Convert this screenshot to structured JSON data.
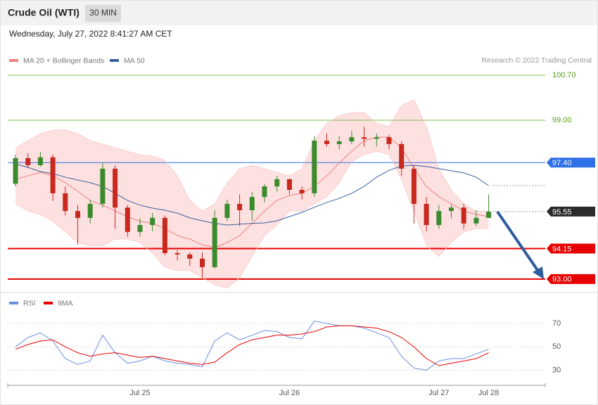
{
  "header": {
    "title": "Crude Oil (WTI)",
    "interval": "30 MIN",
    "timestamp": "Wednesday, July 27, 2022 8:41:27 AM CET"
  },
  "credit": "Research © 2022 Trading Central",
  "chart_data": [
    {
      "type": "candlestick",
      "ylim": [
        92.65,
        101.02
      ],
      "open": [
        96.6,
        97.57,
        97.3,
        97.6,
        96.24,
        95.57,
        95.31,
        95.84,
        97.17,
        95.7,
        94.78,
        95.04,
        95.31,
        93.98,
        93.93,
        93.77,
        93.45,
        95.31,
        95.84,
        95.6,
        96.1,
        96.5,
        96.77,
        96.37,
        96.24,
        98.23,
        98.1,
        98.2,
        98.36,
        98.3,
        98.36,
        98.1,
        97.17,
        95.84,
        95.04,
        95.57,
        95.7,
        95.1,
        95.31
      ],
      "high": [
        97.7,
        97.75,
        97.8,
        97.7,
        96.5,
        95.8,
        96.0,
        97.4,
        97.3,
        95.8,
        95.3,
        95.5,
        95.4,
        94.1,
        94.0,
        94.0,
        95.6,
        96.0,
        96.2,
        96.3,
        96.6,
        96.9,
        96.8,
        96.5,
        98.4,
        98.5,
        98.4,
        98.6,
        98.75,
        98.5,
        98.45,
        98.2,
        97.3,
        96.1,
        95.8,
        95.8,
        95.85,
        95.6,
        96.2
      ],
      "low": [
        96.5,
        97.2,
        97.25,
        95.95,
        95.4,
        94.3,
        95.1,
        95.7,
        94.9,
        94.6,
        94.6,
        94.8,
        93.9,
        93.7,
        93.5,
        93.05,
        93.4,
        95.2,
        95.0,
        95.2,
        95.9,
        96.3,
        96.2,
        96.0,
        96.1,
        98.0,
        97.9,
        98.1,
        98.0,
        98.0,
        97.9,
        96.9,
        95.1,
        94.8,
        94.9,
        95.3,
        94.9,
        95.0,
        95.3
      ],
      "close": [
        97.57,
        97.3,
        97.6,
        96.24,
        95.57,
        95.31,
        95.84,
        97.17,
        95.7,
        94.78,
        95.04,
        95.31,
        93.98,
        93.93,
        93.77,
        93.45,
        95.31,
        95.84,
        95.6,
        96.1,
        96.5,
        96.77,
        96.37,
        96.24,
        98.23,
        98.1,
        98.2,
        98.36,
        98.3,
        98.36,
        98.1,
        97.17,
        95.84,
        95.04,
        95.57,
        95.7,
        95.1,
        95.31,
        95.55
      ],
      "up_color": "#3c8a2e",
      "down_color": "#c8281e",
      "series": [
        {
          "name": "MA 20 + Bollinger Bands",
          "color": "#f08080",
          "band_color": "#fde0e0",
          "values": [
            96.77,
            96.9,
            97.03,
            96.9,
            96.64,
            96.32,
            95.97,
            95.79,
            95.57,
            95.36,
            95.18,
            95.1,
            94.91,
            94.64,
            94.51,
            94.3,
            94.19,
            94.38,
            94.64,
            95.1,
            95.57,
            95.97,
            96.16,
            96.24,
            96.5,
            96.9,
            97.38,
            97.83,
            98.23,
            98.36,
            98.36,
            97.96,
            97.17,
            96.5,
            96.11,
            95.84,
            95.57,
            95.44,
            95.36
          ],
          "upper": [
            97.96,
            98.23,
            98.5,
            98.63,
            98.63,
            98.5,
            98.23,
            98.1,
            97.96,
            97.83,
            97.7,
            97.65,
            97.49,
            96.9,
            95.97,
            95.57,
            95.84,
            96.64,
            97.17,
            97.3,
            97.17,
            97.03,
            96.9,
            97.17,
            98.23,
            98.89,
            99.16,
            99.29,
            99.29,
            98.89,
            98.76,
            99.56,
            99.77,
            98.76,
            97.17,
            96.37,
            95.84,
            95.57,
            95.57
          ],
          "lower": [
            95.84,
            95.57,
            95.44,
            95.18,
            94.78,
            94.38,
            94.25,
            94.25,
            94.51,
            94.51,
            94.38,
            93.98,
            93.45,
            93.32,
            93.32,
            93.05,
            92.79,
            92.65,
            93.05,
            93.85,
            94.64,
            95.04,
            95.57,
            95.57,
            95.84,
            96.11,
            96.64,
            97.43,
            97.7,
            97.83,
            97.7,
            96.77,
            95.57,
            94.25,
            93.85,
            94.38,
            94.78,
            94.91,
            94.91
          ]
        },
        {
          "name": "MA 50",
          "color": "#3a5fa0",
          "values": [
            97.35,
            97.22,
            97.06,
            96.98,
            96.85,
            96.74,
            96.64,
            96.5,
            96.24,
            95.97,
            95.79,
            95.68,
            95.6,
            95.49,
            95.31,
            95.2,
            95.1,
            95.04,
            95.07,
            95.1,
            95.12,
            95.2,
            95.36,
            95.52,
            95.71,
            95.89,
            96.05,
            96.24,
            96.5,
            96.85,
            97.11,
            97.27,
            97.3,
            97.25,
            97.17,
            97.09,
            97.01,
            96.85,
            96.53
          ]
        }
      ],
      "levels": [
        {
          "value": 100.7,
          "label": "100.70",
          "color": "#7cbf4a",
          "box": false
        },
        {
          "value": 99,
          "label": "99.00",
          "color": "#7cbf4a",
          "box": false
        },
        {
          "value": 97.4,
          "label": "97.40",
          "color": "#2f6fe8",
          "box": true
        },
        {
          "value": 95.55,
          "color": "#2b2b2b",
          "box": true
        },
        {
          "value": 94.15,
          "color": "#e60000",
          "box": true
        },
        {
          "value": 93,
          "label": "93.00",
          "color": "#e60000",
          "box": true
        }
      ]
    },
    {
      "type": "line",
      "ylim": [
        22,
        79
      ],
      "yticks": [
        30,
        50,
        70
      ],
      "categories": [
        null,
        null,
        null,
        null,
        null,
        null,
        null,
        null,
        null,
        null,
        "Jul 25",
        null,
        null,
        null,
        null,
        null,
        null,
        null,
        null,
        null,
        null,
        null,
        "Jul 26",
        null,
        null,
        null,
        null,
        null,
        null,
        null,
        null,
        null,
        null,
        null,
        "Jul 27",
        null,
        null,
        null,
        "Jul 28"
      ],
      "series": [
        {
          "name": "RSI",
          "color": "#6a8ee0",
          "values": [
            50,
            58,
            62,
            55,
            40,
            35,
            38,
            60,
            45,
            36,
            38,
            42,
            38,
            36,
            35,
            33,
            55,
            62,
            56,
            60,
            64,
            63,
            58,
            57,
            72,
            70,
            68,
            68,
            66,
            62,
            58,
            42,
            32,
            30,
            38,
            40,
            40,
            44,
            48
          ]
        },
        {
          "name": "9MA",
          "color": "#e60000",
          "values": [
            48,
            52,
            55,
            56,
            50,
            45,
            42,
            44,
            45,
            43,
            41,
            42,
            40,
            38,
            36,
            35,
            37,
            45,
            52,
            56,
            58,
            60,
            60,
            61,
            63,
            67,
            68,
            68,
            67,
            66,
            63,
            58,
            50,
            40,
            34,
            36,
            38,
            40,
            45
          ]
        }
      ]
    }
  ]
}
